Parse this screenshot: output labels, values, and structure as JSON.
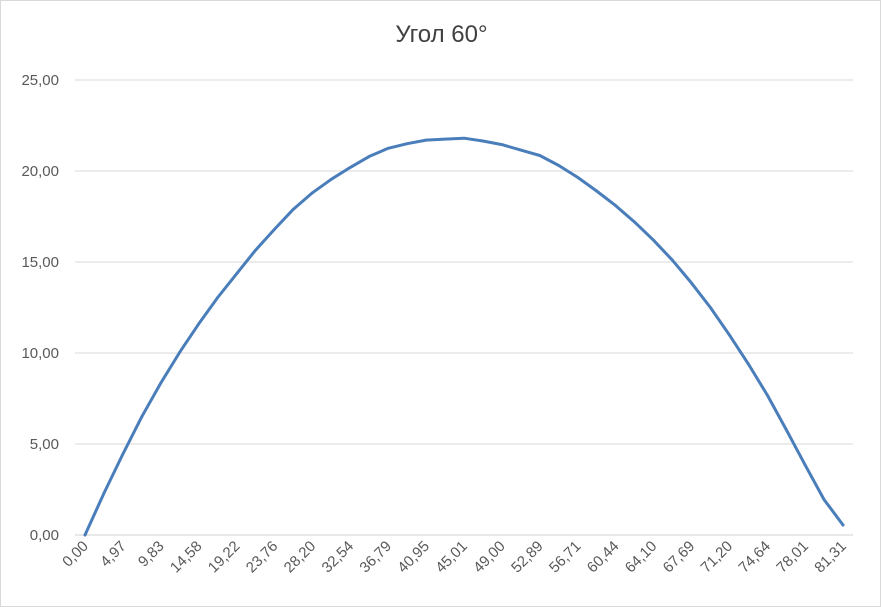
{
  "chart_data": {
    "type": "line",
    "title": "Угол 60°",
    "xlabel": "",
    "ylabel": "",
    "ylim": [
      0,
      25
    ],
    "y_ticks": [
      "0,00",
      "5,00",
      "10,00",
      "15,00",
      "20,00",
      "25,00"
    ],
    "x_tick_labels": [
      "0,00",
      "4,97",
      "9,83",
      "14,58",
      "19,22",
      "23,76",
      "28,20",
      "32,54",
      "36,79",
      "40,95",
      "45,01",
      "49,00",
      "52,89",
      "56,71",
      "60,44",
      "64,10",
      "67,69",
      "71,20",
      "74,64",
      "78,01",
      "81,31"
    ],
    "grid": true,
    "legend": "none",
    "series": [
      {
        "color": "#4a7ebb",
        "x": [
          "0,00",
          "",
          "4,97",
          "",
          "9,83",
          "",
          "14,58",
          "",
          "19,22",
          "",
          "23,76",
          "",
          "28,20",
          "",
          "32,54",
          "",
          "36,79",
          "",
          "40,95",
          "",
          "45,01",
          "",
          "49,00",
          "",
          "52,89",
          "",
          "56,71",
          "",
          "60,44",
          "",
          "64,10",
          "",
          "67,69",
          "",
          "71,20",
          "",
          "74,64",
          "",
          "78,01",
          "",
          "81,31"
        ],
        "values": [
          0.0,
          2.3,
          4.45,
          6.5,
          8.35,
          10.05,
          11.6,
          13.05,
          14.35,
          15.65,
          16.8,
          17.9,
          18.8,
          19.55,
          20.2,
          20.8,
          21.25,
          21.5,
          21.7,
          21.75,
          21.8,
          21.65,
          21.45,
          21.15,
          20.85,
          20.3,
          19.65,
          18.9,
          18.1,
          17.2,
          16.2,
          15.1,
          13.85,
          12.5,
          11.0,
          9.4,
          7.7,
          5.8,
          3.85,
          1.95,
          0.55
        ]
      }
    ]
  }
}
